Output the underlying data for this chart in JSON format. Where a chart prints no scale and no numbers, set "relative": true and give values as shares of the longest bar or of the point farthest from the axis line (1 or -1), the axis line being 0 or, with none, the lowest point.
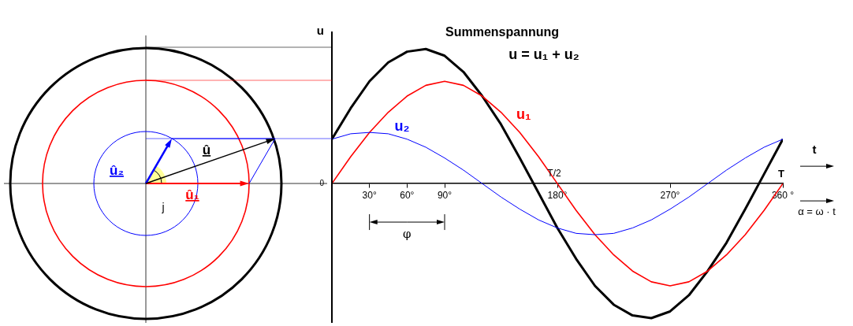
{
  "chart_data": {
    "type": "line",
    "title": "Summenspannung",
    "subtitle": "u = u₁ + u₂",
    "xlabel": "α = ω · t",
    "ylabel": "u",
    "x": [
      0,
      15,
      30,
      45,
      60,
      75,
      90,
      105,
      120,
      135,
      150,
      165,
      180,
      195,
      210,
      225,
      240,
      255,
      270,
      285,
      300,
      315,
      330,
      345,
      360
    ],
    "relative": true,
    "xlim": [
      0,
      360
    ],
    "xticks": [
      {
        "value": 30,
        "label": "30°"
      },
      {
        "value": 60,
        "label": "60°"
      },
      {
        "value": 90,
        "label": "90°"
      },
      {
        "value": 180,
        "label": "180°"
      },
      {
        "value": 270,
        "label": "270°"
      },
      {
        "value": 360,
        "label": "360 °"
      }
    ],
    "series": [
      {
        "color": "#000000",
        "values": [
          0.33,
          0.56,
          0.76,
          0.9,
          0.98,
          1.0,
          0.95,
          0.83,
          0.65,
          0.44,
          0.19,
          -0.07,
          -0.33,
          -0.56,
          -0.76,
          -0.9,
          -0.98,
          -1.0,
          -0.95,
          -0.83,
          -0.65,
          -0.44,
          -0.19,
          0.07,
          0.33
        ]
      },
      {
        "color": "#ff0000",
        "values": [
          0,
          0.2,
          0.38,
          0.53,
          0.65,
          0.73,
          0.76,
          0.73,
          0.65,
          0.53,
          0.38,
          0.2,
          0,
          -0.2,
          -0.38,
          -0.53,
          -0.65,
          -0.73,
          -0.76,
          -0.73,
          -0.65,
          -0.53,
          -0.38,
          -0.2,
          0
        ]
      },
      {
        "color": "#0000ff",
        "values": [
          0.33,
          0.37,
          0.38,
          0.37,
          0.33,
          0.27,
          0.19,
          0.1,
          0,
          -0.1,
          -0.19,
          -0.27,
          -0.33,
          -0.37,
          -0.38,
          -0.37,
          -0.33,
          -0.27,
          -0.19,
          -0.1,
          0,
          0.1,
          0.19,
          0.27,
          0.33
        ]
      }
    ],
    "annotations": [
      "0",
      "u₁",
      "u₂",
      "φ",
      "T/2",
      "T",
      "t",
      "û₂",
      "û",
      "û₁",
      "j"
    ],
    "grid": false,
    "legend": false,
    "marker": "none",
    "line_style": "solid"
  }
}
